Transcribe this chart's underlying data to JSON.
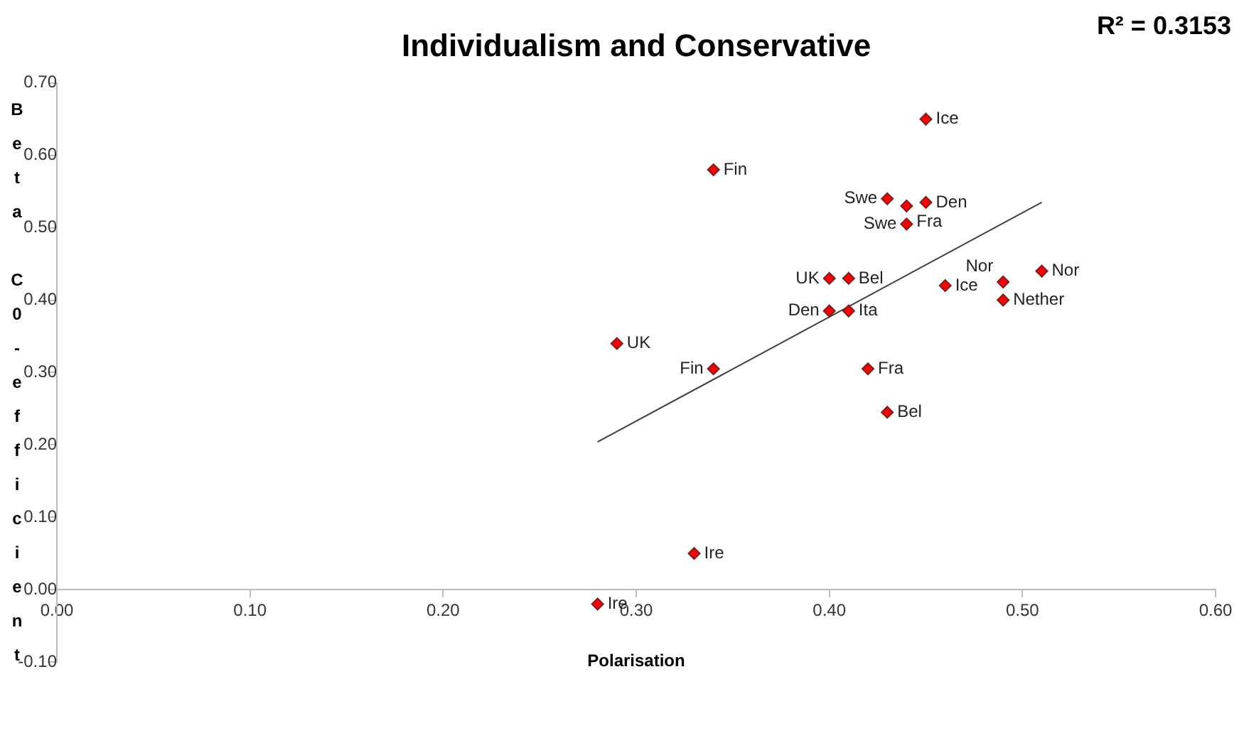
{
  "chart_data": {
    "type": "scatter",
    "title": "Individualism and Conservative",
    "xlabel": "Polarisation",
    "ylabel": "Beta C0-efficient",
    "xlim": [
      0,
      0.6
    ],
    "xticks": [
      {
        "value": 0,
        "label": "0.00"
      },
      {
        "value": 0.1,
        "label": "0.10"
      },
      {
        "value": 0.2,
        "label": "0.20"
      },
      {
        "value": 0.3,
        "label": "0.30"
      },
      {
        "value": 0.4,
        "label": "0.40"
      },
      {
        "value": 0.5,
        "label": "0.50"
      },
      {
        "value": 0.6,
        "label": "0.60"
      }
    ],
    "ylim": [
      -0.1,
      0.7
    ],
    "yticks": [
      {
        "value": -0.1,
        "label": "-0.10"
      },
      {
        "value": 0,
        "label": "0.00"
      },
      {
        "value": 0.1,
        "label": "0.10"
      },
      {
        "value": 0.2,
        "label": "0.20"
      },
      {
        "value": 0.3,
        "label": "0.30"
      },
      {
        "value": 0.4,
        "label": "0.40"
      },
      {
        "value": 0.5,
        "label": "0.50"
      },
      {
        "value": 0.6,
        "label": "0.60"
      },
      {
        "value": 0.7,
        "label": "0.70"
      }
    ],
    "grid": false,
    "legend": false,
    "marker": "diamond",
    "series": [
      {
        "color": "#ff0000",
        "x": [
          0.45,
          0.34,
          0.43,
          0.45,
          0.41,
          0.4,
          0.29,
          0.34,
          0.42,
          0.43,
          0.51,
          0.49,
          0.28,
          0.44,
          0.44,
          0.4,
          0.41,
          0.46,
          0.49,
          0.33
        ],
        "values": [
          0.65,
          0.58,
          0.54,
          0.535,
          0.43,
          0.385,
          0.34,
          0.305,
          0.305,
          0.245,
          0.44,
          0.4,
          -0.02,
          0.53,
          0.505,
          0.43,
          0.385,
          0.42,
          0.425,
          0.05
        ]
      },
      {
        "type": "line",
        "color": "#404040",
        "marker": "none",
        "x": [
          0.28,
          0.51
        ],
        "values": [
          0.204,
          0.535
        ]
      }
    ],
    "annotations": [
      "R² = 0.3153",
      {
        "text": "Ice",
        "x": 0.45,
        "y": 0.65
      },
      {
        "text": "Fin",
        "x": 0.34,
        "y": 0.58
      },
      {
        "text": "Swe",
        "x": 0.43,
        "y": 0.54
      },
      {
        "text": "Den",
        "x": 0.45,
        "y": 0.535
      },
      {
        "text": "Bel",
        "x": 0.41,
        "y": 0.43
      },
      {
        "text": "Den",
        "x": 0.4,
        "y": 0.385
      },
      {
        "text": "UK",
        "x": 0.29,
        "y": 0.34
      },
      {
        "text": "Fin",
        "x": 0.34,
        "y": 0.305
      },
      {
        "text": "Fra",
        "x": 0.42,
        "y": 0.305
      },
      {
        "text": "Bel",
        "x": 0.43,
        "y": 0.245
      },
      {
        "text": "Nor",
        "x": 0.51,
        "y": 0.44
      },
      {
        "text": "Nether",
        "x": 0.49,
        "y": 0.4
      },
      {
        "text": "Ire",
        "x": 0.28,
        "y": -0.02
      },
      {
        "text": "Fra",
        "x": 0.44,
        "y": 0.53
      },
      {
        "text": "Swe",
        "x": 0.44,
        "y": 0.505
      },
      {
        "text": "UK",
        "x": 0.4,
        "y": 0.43
      },
      {
        "text": "Ita",
        "x": 0.41,
        "y": 0.385
      },
      {
        "text": "Ice",
        "x": 0.46,
        "y": 0.42
      },
      {
        "text": "Nor",
        "x": 0.49,
        "y": 0.425
      },
      {
        "text": "Ire",
        "x": 0.33,
        "y": 0.05
      }
    ]
  }
}
